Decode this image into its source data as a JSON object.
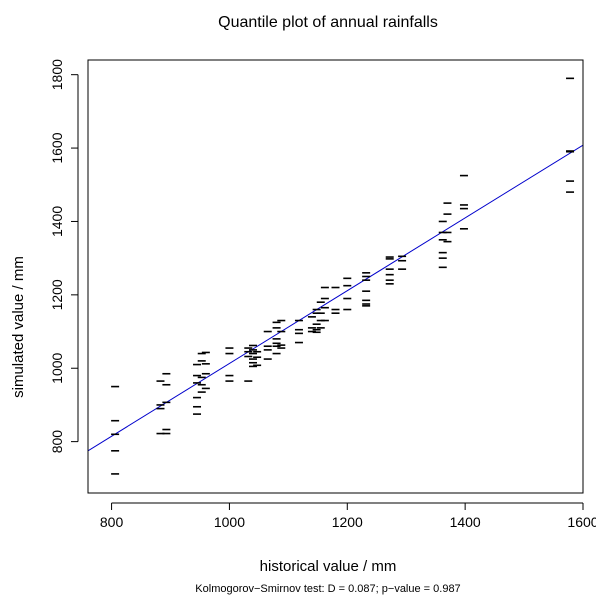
{
  "chart_data": {
    "type": "scatter",
    "title": "Quantile plot of annual rainfalls",
    "xlabel": "historical value / mm",
    "ylabel": "simulated value / mm",
    "subtitle": "Kolmogorov−Smirnov test: D = 0.087; p−value = 0.987",
    "xlim": [
      760,
      1600
    ],
    "ylim": [
      660,
      1840
    ],
    "x_ticks": [
      800,
      1000,
      1200,
      1400,
      1600
    ],
    "x_tick_labels": [
      "800",
      "1000",
      "1200",
      "1400",
      "1600"
    ],
    "y_ticks": [
      800,
      1000,
      1200,
      1400,
      1600,
      1800
    ],
    "y_tick_labels": [
      "800",
      "1000",
      "1200",
      "1400",
      "1600",
      "1800"
    ],
    "grid": false,
    "marker": "dash",
    "colors": {
      "points": "#000000",
      "line": "#0000cc"
    },
    "reference_line": {
      "name": "",
      "x": [
        760,
        1600
      ],
      "y": [
        775,
        1608
      ]
    },
    "points": [
      [
        806,
        712
      ],
      [
        806,
        775
      ],
      [
        806,
        820
      ],
      [
        806,
        857
      ],
      [
        806,
        950
      ],
      [
        883,
        822
      ],
      [
        883,
        890
      ],
      [
        883,
        900
      ],
      [
        883,
        965
      ],
      [
        893,
        822
      ],
      [
        893,
        833
      ],
      [
        893,
        907
      ],
      [
        893,
        955
      ],
      [
        893,
        985
      ],
      [
        945,
        875
      ],
      [
        945,
        895
      ],
      [
        945,
        920
      ],
      [
        945,
        960
      ],
      [
        945,
        980
      ],
      [
        945,
        1010
      ],
      [
        953,
        935
      ],
      [
        953,
        955
      ],
      [
        953,
        975
      ],
      [
        953,
        1020
      ],
      [
        953,
        1040
      ],
      [
        960,
        945
      ],
      [
        960,
        985
      ],
      [
        960,
        1012
      ],
      [
        960,
        1043
      ],
      [
        1000,
        965
      ],
      [
        1000,
        980
      ],
      [
        1000,
        1040
      ],
      [
        1000,
        1055
      ],
      [
        1032,
        965
      ],
      [
        1032,
        1032
      ],
      [
        1032,
        1045
      ],
      [
        1032,
        1055
      ],
      [
        1040,
        1005
      ],
      [
        1040,
        1015
      ],
      [
        1040,
        1025
      ],
      [
        1040,
        1040
      ],
      [
        1040,
        1050
      ],
      [
        1040,
        1062
      ],
      [
        1047,
        1008
      ],
      [
        1047,
        1030
      ],
      [
        1047,
        1045
      ],
      [
        1065,
        1025
      ],
      [
        1065,
        1050
      ],
      [
        1065,
        1060
      ],
      [
        1065,
        1100
      ],
      [
        1080,
        1040
      ],
      [
        1080,
        1060
      ],
      [
        1080,
        1068
      ],
      [
        1080,
        1080
      ],
      [
        1080,
        1110
      ],
      [
        1080,
        1125
      ],
      [
        1088,
        1055
      ],
      [
        1088,
        1063
      ],
      [
        1088,
        1100
      ],
      [
        1088,
        1130
      ],
      [
        1118,
        1070
      ],
      [
        1118,
        1095
      ],
      [
        1118,
        1105
      ],
      [
        1118,
        1130
      ],
      [
        1140,
        1100
      ],
      [
        1140,
        1110
      ],
      [
        1140,
        1140
      ],
      [
        1148,
        1098
      ],
      [
        1148,
        1105
      ],
      [
        1148,
        1120
      ],
      [
        1148,
        1150
      ],
      [
        1148,
        1160
      ],
      [
        1155,
        1110
      ],
      [
        1155,
        1130
      ],
      [
        1155,
        1150
      ],
      [
        1155,
        1180
      ],
      [
        1162,
        1130
      ],
      [
        1162,
        1165
      ],
      [
        1162,
        1190
      ],
      [
        1162,
        1220
      ],
      [
        1180,
        1150
      ],
      [
        1180,
        1160
      ],
      [
        1180,
        1220
      ],
      [
        1200,
        1160
      ],
      [
        1200,
        1190
      ],
      [
        1200,
        1225
      ],
      [
        1200,
        1245
      ],
      [
        1232,
        1170
      ],
      [
        1232,
        1175
      ],
      [
        1232,
        1185
      ],
      [
        1232,
        1210
      ],
      [
        1232,
        1240
      ],
      [
        1232,
        1250
      ],
      [
        1232,
        1260
      ],
      [
        1272,
        1230
      ],
      [
        1272,
        1240
      ],
      [
        1272,
        1255
      ],
      [
        1272,
        1270
      ],
      [
        1272,
        1298
      ],
      [
        1272,
        1303
      ],
      [
        1293,
        1270
      ],
      [
        1293,
        1293
      ],
      [
        1293,
        1305
      ],
      [
        1362,
        1275
      ],
      [
        1362,
        1300
      ],
      [
        1362,
        1315
      ],
      [
        1362,
        1350
      ],
      [
        1362,
        1370
      ],
      [
        1362,
        1400
      ],
      [
        1370,
        1345
      ],
      [
        1370,
        1370
      ],
      [
        1370,
        1420
      ],
      [
        1370,
        1450
      ],
      [
        1398,
        1380
      ],
      [
        1398,
        1435
      ],
      [
        1398,
        1445
      ],
      [
        1398,
        1525
      ],
      [
        1578,
        1480
      ],
      [
        1578,
        1510
      ],
      [
        1578,
        1590
      ],
      [
        1578,
        1592
      ],
      [
        1578,
        1790
      ]
    ]
  }
}
